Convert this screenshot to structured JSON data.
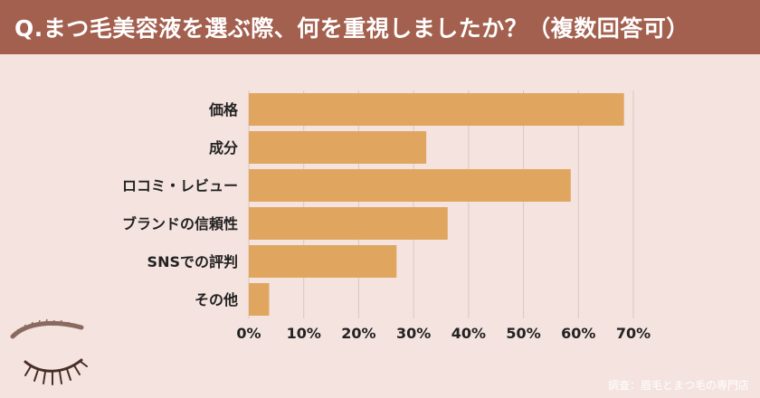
{
  "header": {
    "title": "Q.まつ毛美容液を選ぶ際、何を重視しましたか？（複数回答可）"
  },
  "footer": {
    "source": "調査：眉毛とまつ毛の専門店"
  },
  "colors": {
    "background": "#f4e3df",
    "title_bar": "#a4604f",
    "bar": "#e0a660",
    "grid": "#dbc7c2",
    "text": "#222222"
  },
  "chart_data": {
    "type": "bar",
    "orientation": "horizontal",
    "categories": [
      "価格",
      "成分",
      "ロコミ・レビュー",
      "ブランドの信頼性",
      "SNSでの評判",
      "その他"
    ],
    "values": [
      68.3,
      32.3,
      58.6,
      36.2,
      26.9,
      3.7
    ],
    "xlim": [
      0,
      70
    ],
    "x_ticks": [
      0,
      10,
      20,
      30,
      40,
      50,
      60,
      70
    ],
    "x_tick_labels": [
      "0%",
      "10%",
      "20%",
      "30%",
      "40%",
      "50%",
      "60%",
      "70%"
    ],
    "grid": true,
    "title": "",
    "xlabel": "",
    "ylabel": ""
  }
}
